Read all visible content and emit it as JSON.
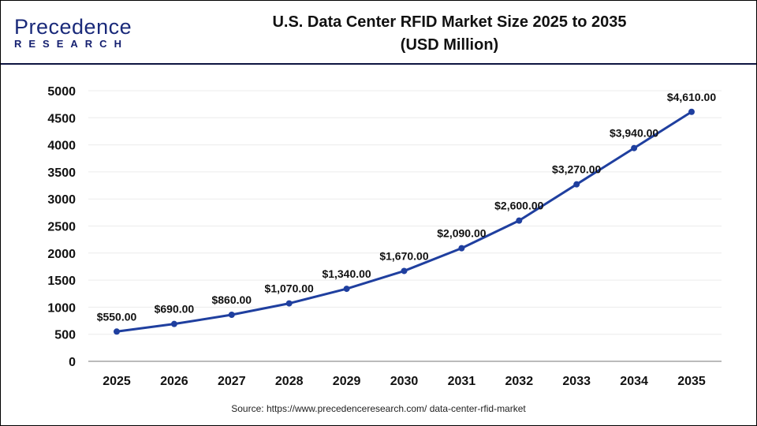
{
  "logo": {
    "line1": "Precedence",
    "line2": "RESEARCH"
  },
  "chart_data": {
    "type": "line",
    "title": "U.S. Data Center RFID Market Size 2025 to 2035",
    "subtitle": "(USD Million)",
    "categories": [
      "2025",
      "2026",
      "2027",
      "2028",
      "2029",
      "2030",
      "2031",
      "2032",
      "2033",
      "2034",
      "2035"
    ],
    "values": [
      550,
      690,
      860,
      1070,
      1340,
      1670,
      2090,
      2600,
      3270,
      3940,
      4610
    ],
    "data_labels": [
      "$550.00",
      "$690.00",
      "$860.00",
      "$1,070.00",
      "$1,340.00",
      "$1,670.00",
      "$2,090.00",
      "$2,600.00",
      "$3,270.00",
      "$3,940.00",
      "$4,610.00"
    ],
    "ylim": [
      0,
      5000
    ],
    "yticks": [
      "0",
      "500",
      "1000",
      "1500",
      "2000",
      "2500",
      "3000",
      "3500",
      "4000",
      "4500",
      "5000"
    ],
    "xlabel": "",
    "ylabel": "",
    "grid": true,
    "line_color": "#1f3f9f"
  },
  "source": "Source: https://www.precedenceresearch.com/ data-center-rfid-market"
}
